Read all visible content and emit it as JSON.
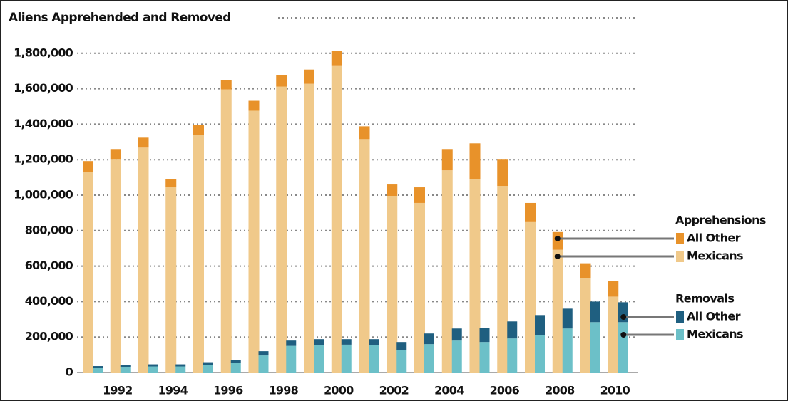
{
  "chart_data": {
    "type": "grouped_stacked_bar",
    "title": "Aliens Apprehended and Removed",
    "categories": [
      null,
      "1992",
      null,
      "1994",
      null,
      "1996",
      null,
      "1998",
      null,
      "2000",
      null,
      "2002",
      null,
      "2004",
      null,
      "2006",
      null,
      "2008",
      null,
      "2010"
    ],
    "series_groups": [
      {
        "name": "Apprehensions",
        "series": [
          {
            "name": "All Other",
            "color": "#e8922a",
            "values": [
              60000,
              56000,
              56000,
              48000,
              56000,
              52000,
              56000,
              64000,
              80000,
              80000,
              72000,
              64000,
              88000,
              120000,
              200000,
              152000,
              104000,
              100000,
              84000,
              88000
            ]
          },
          {
            "name": "Mexicans",
            "color": "#f0c98a",
            "values": [
              1132000,
              1204000,
              1268000,
              1044000,
              1340000,
              1596000,
              1476000,
              1612000,
              1628000,
              1732000,
              1316000,
              996000,
              956000,
              1140000,
              1092000,
              1052000,
              852000,
              692000,
              532000,
              428000
            ]
          }
        ]
      },
      {
        "name": "Removals",
        "series": [
          {
            "name": "All Other",
            "color": "#1f5f80",
            "values": [
              12000,
              12000,
              12000,
              12000,
              14000,
              14000,
              24000,
              30000,
              33000,
              31000,
              33000,
              46000,
              60000,
              68000,
              80000,
              96000,
              112000,
              112000,
              116000,
              112000
            ]
          },
          {
            "name": "Mexicans",
            "color": "#6cc0c8",
            "values": [
              24000,
              32000,
              34000,
              34000,
              44000,
              56000,
              96000,
              150000,
              155000,
              157000,
              155000,
              126000,
              160000,
              180000,
              172000,
              192000,
              212000,
              248000,
              284000,
              284000
            ]
          }
        ]
      }
    ],
    "ylim": [
      0,
      2000000
    ],
    "yticks": [
      {
        "value": 0,
        "label": "0"
      },
      {
        "value": 200000,
        "label": "200,000"
      },
      {
        "value": 400000,
        "label": "400,000"
      },
      {
        "value": 600000,
        "label": "600,000"
      },
      {
        "value": 800000,
        "label": "800,000"
      },
      {
        "value": 1000000,
        "label": "1,000,000"
      },
      {
        "value": 1200000,
        "label": "1,200,000"
      },
      {
        "value": 1400000,
        "label": "1,400,000"
      },
      {
        "value": 1600000,
        "label": "1,600,000"
      },
      {
        "value": 1800000,
        "label": "1,800,000"
      }
    ],
    "grid": true
  }
}
